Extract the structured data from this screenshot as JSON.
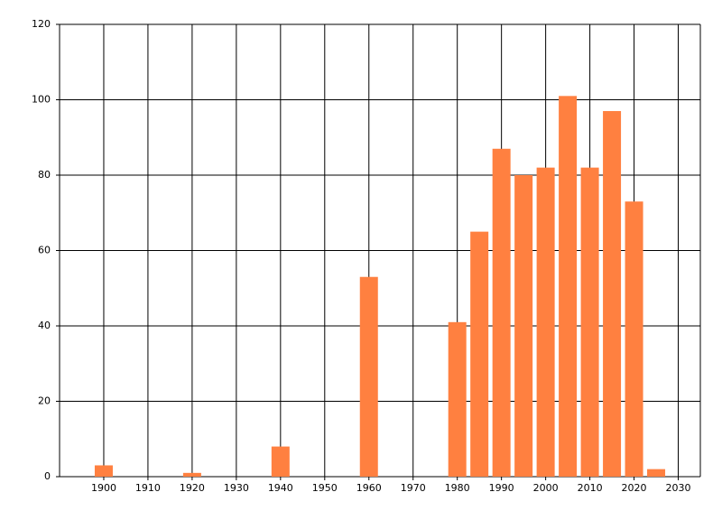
{
  "chart_data": {
    "type": "bar",
    "x": [
      1900,
      1920,
      1940,
      1960,
      1980,
      1985,
      1990,
      1995,
      2000,
      2005,
      2010,
      2015,
      2020,
      2025
    ],
    "values": [
      3,
      1,
      8,
      53,
      41,
      65,
      87,
      80,
      82,
      101,
      82,
      97,
      73,
      2
    ],
    "color": "#ff8040",
    "xlim": [
      1890,
      2035
    ],
    "xticks": [
      1900,
      1910,
      1920,
      1930,
      1940,
      1950,
      1960,
      1970,
      1980,
      1990,
      2000,
      2010,
      2020,
      2030
    ],
    "ylim": [
      0,
      120
    ],
    "yticks": [
      0,
      20,
      40,
      60,
      80,
      100,
      120
    ],
    "grid": true
  }
}
